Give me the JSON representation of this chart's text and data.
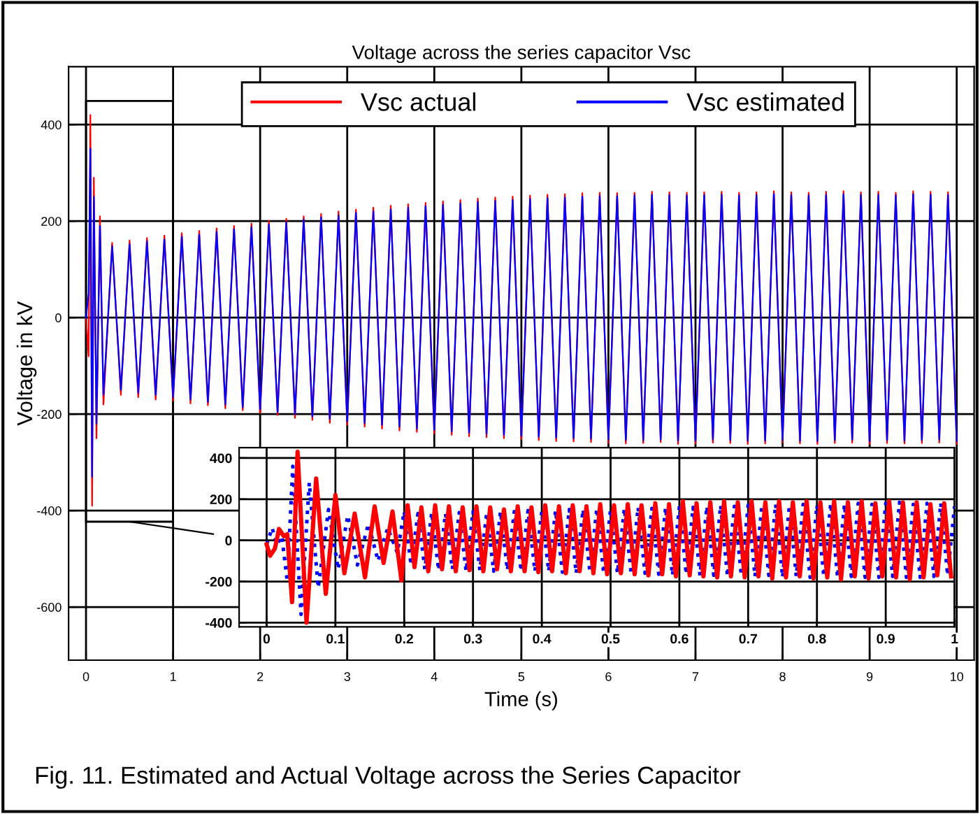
{
  "chart_data": [
    {
      "type": "line",
      "title": "Voltage across the series capacitor Vsc",
      "xlabel": "Time (s)",
      "ylabel": "Voltage in kV",
      "annotations": [
        "Fig. 11. Estimated and Actual Voltage across the Series Capacitor"
      ],
      "xlim": [
        -0.2,
        10.2
      ],
      "ylim": [
        -710,
        520
      ],
      "xticks": [
        0,
        1,
        2,
        3,
        4,
        5,
        6,
        7,
        8,
        9,
        10
      ],
      "yticks": [
        -600,
        -400,
        -200,
        0,
        200,
        400
      ],
      "grid": true,
      "legend": "top",
      "series": [
        {
          "name": "Vsc actual",
          "color": "#ff0000",
          "line_style": "solid",
          "x": [
            0,
            0.03,
            0.05,
            0.07,
            0.09,
            0.12,
            0.16,
            0.2,
            0.3,
            0.4,
            0.5,
            0.6,
            0.7,
            0.8,
            0.9,
            1.0,
            1.1,
            1.2,
            1.3,
            1.4,
            1.5,
            1.6,
            1.7,
            1.8,
            1.9,
            2.0,
            2.1,
            2.2,
            2.3,
            2.4,
            2.5,
            2.6,
            2.7,
            2.8,
            2.9,
            3.0,
            3.1,
            3.2,
            3.3,
            3.4,
            3.5,
            3.6,
            3.7,
            3.8,
            3.9,
            4.0,
            4.1,
            4.2,
            4.3,
            4.4,
            4.5,
            4.6,
            4.7,
            4.8,
            4.9,
            5.0,
            5.1,
            5.2,
            5.3,
            5.4,
            5.5,
            5.6,
            5.7,
            5.8,
            5.9,
            6.0,
            6.1,
            6.2,
            6.3,
            6.4,
            6.5,
            6.6,
            6.7,
            6.8,
            6.9,
            7.0,
            7.1,
            7.2,
            7.3,
            7.4,
            7.5,
            7.6,
            7.7,
            7.8,
            7.9,
            8.0,
            8.1,
            8.2,
            8.3,
            8.4,
            8.5,
            8.6,
            8.7,
            8.8,
            8.9,
            9.0,
            9.1,
            9.2,
            9.3,
            9.4,
            9.5,
            9.6,
            9.7,
            9.8,
            9.9,
            10.0
          ],
          "values": [
            0,
            -80,
            420,
            -390,
            290,
            -250,
            210,
            -180,
            155,
            -160,
            160,
            -165,
            165,
            -170,
            170,
            -172,
            175,
            -178,
            180,
            -182,
            185,
            -188,
            190,
            -192,
            195,
            -198,
            200,
            -202,
            205,
            -208,
            210,
            -212,
            215,
            -218,
            220,
            -222,
            224,
            -226,
            228,
            -230,
            232,
            -234,
            235,
            -237,
            238,
            -240,
            241,
            -243,
            244,
            -246,
            247,
            -248,
            249,
            -250,
            251,
            -252,
            253,
            -254,
            255,
            -256,
            256,
            -257,
            258,
            -258,
            259,
            -260,
            258,
            -261,
            259,
            -260,
            261,
            -258,
            260,
            -262,
            259,
            -261,
            260,
            -259,
            261,
            -260,
            259,
            -262,
            260,
            -261,
            262,
            -259,
            260,
            -261,
            259,
            -262,
            261,
            -260,
            262,
            -259,
            260,
            -262,
            261,
            -260,
            259,
            -261,
            262,
            -260,
            261,
            -259,
            260,
            -262
          ]
        },
        {
          "name": "Vsc estimated",
          "color": "#0000ff",
          "line_style": "solid",
          "x": [
            0,
            0.03,
            0.05,
            0.07,
            0.09,
            0.12,
            0.16,
            0.2,
            0.3,
            0.4,
            0.5,
            0.6,
            0.7,
            0.8,
            0.9,
            1.0,
            1.1,
            1.2,
            1.3,
            1.4,
            1.5,
            1.6,
            1.7,
            1.8,
            1.9,
            2.0,
            2.1,
            2.2,
            2.3,
            2.4,
            2.5,
            2.6,
            2.7,
            2.8,
            2.9,
            3.0,
            3.1,
            3.2,
            3.3,
            3.4,
            3.5,
            3.6,
            3.7,
            3.8,
            3.9,
            4.0,
            4.1,
            4.2,
            4.3,
            4.4,
            4.5,
            4.6,
            4.7,
            4.8,
            4.9,
            5.0,
            5.1,
            5.2,
            5.3,
            5.4,
            5.5,
            5.6,
            5.7,
            5.8,
            5.9,
            6.0,
            6.1,
            6.2,
            6.3,
            6.4,
            6.5,
            6.6,
            6.7,
            6.8,
            6.9,
            7.0,
            7.1,
            7.2,
            7.3,
            7.4,
            7.5,
            7.6,
            7.7,
            7.8,
            7.9,
            8.0,
            8.1,
            8.2,
            8.3,
            8.4,
            8.5,
            8.6,
            8.7,
            8.8,
            8.9,
            9.0,
            9.1,
            9.2,
            9.3,
            9.4,
            9.5,
            9.6,
            9.7,
            9.8,
            9.9,
            10.0
          ],
          "values": [
            0,
            50,
            350,
            -330,
            250,
            -220,
            190,
            -160,
            148,
            -150,
            152,
            -156,
            158,
            -160,
            162,
            -165,
            168,
            -170,
            172,
            -175,
            178,
            -180,
            183,
            -186,
            188,
            -190,
            193,
            -196,
            198,
            -200,
            203,
            -205,
            208,
            -210,
            212,
            -215,
            217,
            -219,
            220,
            -222,
            224,
            -226,
            228,
            -230,
            231,
            -233,
            234,
            -236,
            237,
            -238,
            240,
            -241,
            242,
            -243,
            244,
            -245,
            246,
            -247,
            248,
            -249,
            249,
            -250,
            251,
            -251,
            252,
            -253,
            252,
            -254,
            253,
            -254,
            255,
            -253,
            254,
            -255,
            253,
            -255,
            254,
            -253,
            255,
            -254,
            253,
            -255,
            254,
            -255,
            256,
            -254,
            254,
            -255,
            253,
            -256,
            255,
            -254,
            256,
            -253,
            254,
            -256,
            255,
            -254,
            253,
            -255,
            256,
            -254,
            255,
            -253,
            254,
            -256
          ]
        }
      ]
    },
    {
      "type": "line",
      "xlim": [
        -0.04,
        1.0
      ],
      "ylim": [
        -420,
        450
      ],
      "xticks": [
        0,
        0.1,
        0.2,
        0.3,
        0.4,
        0.5,
        0.6,
        0.7,
        0.8,
        0.9,
        1
      ],
      "yticks": [
        -400,
        -200,
        0,
        200,
        400
      ],
      "grid": true,
      "series": [
        {
          "color": "#0000ff",
          "line_style": "dotted",
          "x": [
            0,
            0.008,
            0.015,
            0.022,
            0.03,
            0.038,
            0.05,
            0.062,
            0.075,
            0.09,
            0.104,
            0.118,
            0.132,
            0.148,
            0.162,
            0.176,
            0.19,
            0.2,
            0.21,
            0.22,
            0.23,
            0.24,
            0.25,
            0.26,
            0.27,
            0.28,
            0.29,
            0.3,
            0.31,
            0.32,
            0.33,
            0.34,
            0.35,
            0.36,
            0.37,
            0.38,
            0.39,
            0.4,
            0.41,
            0.42,
            0.43,
            0.44,
            0.45,
            0.46,
            0.47,
            0.48,
            0.49,
            0.5,
            0.51,
            0.52,
            0.53,
            0.54,
            0.55,
            0.56,
            0.57,
            0.58,
            0.59,
            0.6,
            0.61,
            0.62,
            0.63,
            0.64,
            0.65,
            0.66,
            0.67,
            0.68,
            0.69,
            0.7,
            0.71,
            0.72,
            0.73,
            0.74,
            0.75,
            0.76,
            0.77,
            0.78,
            0.79,
            0.8,
            0.81,
            0.82,
            0.83,
            0.84,
            0.85,
            0.86,
            0.87,
            0.88,
            0.89,
            0.9,
            0.91,
            0.92,
            0.93,
            0.94,
            0.95,
            0.96,
            0.97,
            0.98,
            0.99,
            1.0
          ],
          "values": [
            -20,
            60,
            -20,
            20,
            -200,
            360,
            -360,
            280,
            -230,
            150,
            -140,
            120,
            -120,
            80,
            -100,
            60,
            -60,
            140,
            -120,
            130,
            -140,
            135,
            -145,
            130,
            -140,
            135,
            -150,
            140,
            -145,
            135,
            -150,
            140,
            -145,
            140,
            -150,
            145,
            -150,
            140,
            -150,
            145,
            -155,
            150,
            -160,
            150,
            -155,
            155,
            -160,
            150,
            -160,
            155,
            -165,
            160,
            -160,
            155,
            -165,
            160,
            -170,
            165,
            -165,
            160,
            -170,
            165,
            -170,
            170,
            -175,
            165,
            -170,
            170,
            -175,
            170,
            -170,
            175,
            -180,
            170,
            -175,
            175,
            -180,
            170,
            -175,
            180,
            -180,
            175,
            -175,
            180,
            -180,
            175,
            -180,
            180,
            -175,
            185,
            -180,
            175,
            -180,
            180,
            -175,
            180,
            -170,
            165
          ]
        },
        {
          "color": "#ff0000",
          "line_style": "solid",
          "x": [
            0,
            0.005,
            0.012,
            0.018,
            0.025,
            0.03,
            0.037,
            0.045,
            0.058,
            0.072,
            0.086,
            0.1,
            0.113,
            0.128,
            0.143,
            0.157,
            0.17,
            0.183,
            0.196,
            0.205,
            0.215,
            0.225,
            0.235,
            0.245,
            0.255,
            0.265,
            0.275,
            0.285,
            0.295,
            0.305,
            0.315,
            0.325,
            0.335,
            0.345,
            0.355,
            0.365,
            0.375,
            0.385,
            0.395,
            0.405,
            0.415,
            0.425,
            0.435,
            0.445,
            0.455,
            0.465,
            0.475,
            0.485,
            0.495,
            0.505,
            0.515,
            0.525,
            0.535,
            0.545,
            0.555,
            0.565,
            0.575,
            0.585,
            0.595,
            0.605,
            0.615,
            0.625,
            0.635,
            0.645,
            0.655,
            0.665,
            0.675,
            0.685,
            0.695,
            0.705,
            0.715,
            0.725,
            0.735,
            0.745,
            0.755,
            0.765,
            0.775,
            0.785,
            0.795,
            0.805,
            0.815,
            0.825,
            0.835,
            0.845,
            0.855,
            0.865,
            0.875,
            0.885,
            0.895,
            0.905,
            0.915,
            0.925,
            0.935,
            0.945,
            0.955,
            0.965,
            0.975,
            0.985,
            0.995
          ],
          "values": [
            -20,
            -75,
            -40,
            55,
            20,
            30,
            -300,
            430,
            -400,
            300,
            -260,
            220,
            -160,
            130,
            -180,
            165,
            -110,
            140,
            -195,
            170,
            -130,
            160,
            -150,
            170,
            -140,
            165,
            -150,
            160,
            -145,
            165,
            -150,
            160,
            -140,
            150,
            -150,
            165,
            -150,
            160,
            -155,
            170,
            -150,
            165,
            -160,
            170,
            -150,
            165,
            -160,
            175,
            -165,
            170,
            -160,
            175,
            -165,
            170,
            -170,
            180,
            -165,
            175,
            -175,
            190,
            -170,
            180,
            -175,
            185,
            -180,
            190,
            -175,
            185,
            -180,
            190,
            -175,
            185,
            -185,
            190,
            -180,
            185,
            -175,
            190,
            -185,
            185,
            -180,
            190,
            -190,
            185,
            -175,
            190,
            -185,
            180,
            -175,
            190,
            -180,
            185,
            -190,
            185,
            -180,
            175,
            -170,
            180,
            -175
          ]
        }
      ]
    }
  ]
}
